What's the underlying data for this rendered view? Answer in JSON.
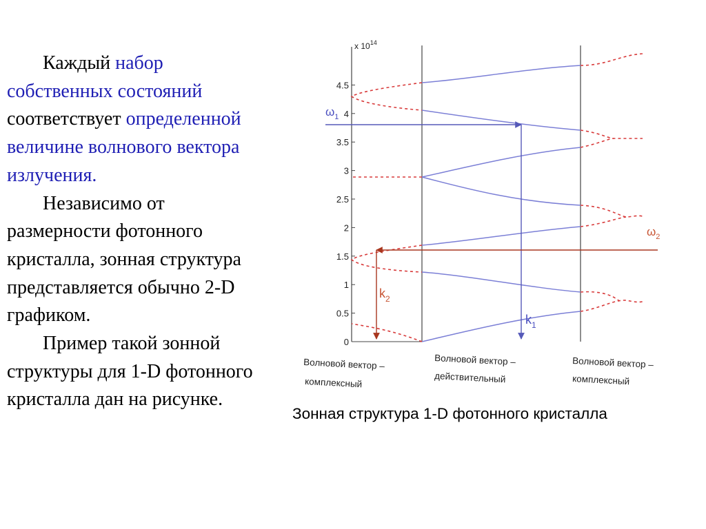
{
  "text": {
    "p1_part1": "Каждый ",
    "p1_part2": "набор",
    "p1_part3": "собственных состояний",
    "p1_part4": "соответствует",
    "p1_part5": "определенной величине волнового вектора излучения.",
    "p2": "Независимо от размерности фотонного кристалла, зонная структура представляется обычно 2-D графиком.",
    "p3": "Пример такой зонной структуры для 1-D фотонного кристалла дан на рисунке."
  },
  "caption": "Зонная структура 1-D фотонного кристалла",
  "diagram": {
    "y_multiplier": "x 10",
    "y_multiplier_exp": "14",
    "y_ticks": [
      "0",
      "0.5",
      "1",
      "1.5",
      "2",
      "2.5",
      "3",
      "3.5",
      "4",
      "4.5"
    ],
    "omega1": "ω",
    "omega1_sub": "1",
    "omega2": "ω",
    "omega2_sub": "2",
    "k1": "k",
    "k1_sub": "1",
    "k2": "k",
    "k2_sub": "2",
    "region_left_line1": "Волновой вектор –",
    "region_left_line2": "комплексный",
    "region_mid_line1": "Волновой вектор –",
    "region_mid_line2": "действительный",
    "region_right_line1": "Волновой вектор –",
    "region_right_line2": "комплексный",
    "colors": {
      "band": "#7b7fd6",
      "dashed": "#d83a3a",
      "arrow_blue": "#5559b8",
      "arrow_red": "#a8361e",
      "axis": "#444444"
    }
  }
}
